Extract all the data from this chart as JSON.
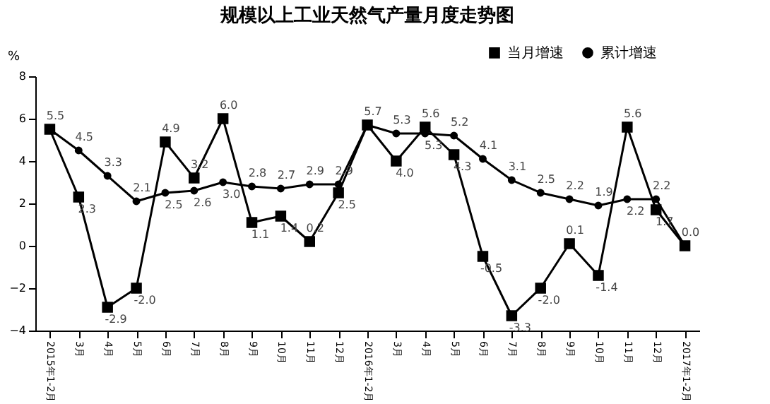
{
  "chart_data": {
    "type": "line",
    "title": "规模以上工业天然气产量月度走势图",
    "ylabel": "%",
    "categories": [
      "2015年1-2月",
      "3月",
      "4月",
      "5月",
      "6月",
      "7月",
      "8月",
      "9月",
      "10月",
      "11月",
      "12月",
      "2016年1-2月",
      "3月",
      "4月",
      "5月",
      "6月",
      "7月",
      "8月",
      "9月",
      "10月",
      "11月",
      "12月",
      "2017年1-2月"
    ],
    "series": [
      {
        "name": "当月增速",
        "color": "#000000",
        "marker": "square",
        "values": [
          5.5,
          2.3,
          -2.9,
          -2.0,
          4.9,
          3.2,
          6.0,
          1.1,
          1.4,
          0.2,
          2.5,
          5.7,
          4.0,
          5.6,
          4.3,
          -0.5,
          -3.3,
          -2.0,
          0.1,
          -1.4,
          5.6,
          1.7,
          0.0
        ],
        "value_labels": [
          "5.5",
          "2.3",
          "-2.9",
          "-2.0",
          "4.9",
          "3.2",
          "6.0",
          "1.1",
          "1.4",
          "0.2",
          "2.5",
          "5.7",
          "4.0",
          "5.6",
          "4.3",
          "-0.5",
          "-3.3",
          "-2.0",
          "0.1",
          "-1.4",
          "5.6",
          "1.7",
          "0.0"
        ]
      },
      {
        "name": "累计增速",
        "color": "#000000",
        "marker": "circle",
        "values": [
          5.5,
          4.5,
          3.3,
          2.1,
          2.5,
          2.6,
          3.0,
          2.8,
          2.7,
          2.9,
          2.9,
          5.7,
          5.3,
          5.3,
          5.2,
          4.1,
          3.1,
          2.5,
          2.2,
          1.9,
          2.2,
          2.2,
          0.0
        ],
        "value_labels": [
          null,
          "4.5",
          "3.3",
          "2.1",
          "2.5",
          "2.6",
          "3.0",
          "2.8",
          "2.7",
          "2.9",
          "2.9",
          null,
          "5.3",
          "5.3",
          "5.2",
          "4.1",
          "3.1",
          "2.5",
          "2.2",
          "1.9",
          "2.2",
          "2.2",
          null
        ]
      }
    ],
    "ylim": [
      -4,
      8
    ],
    "yticks": [
      -4,
      -2,
      0,
      2,
      4,
      6,
      8
    ],
    "grid": false,
    "legend": "top right",
    "line_style": "solid"
  }
}
